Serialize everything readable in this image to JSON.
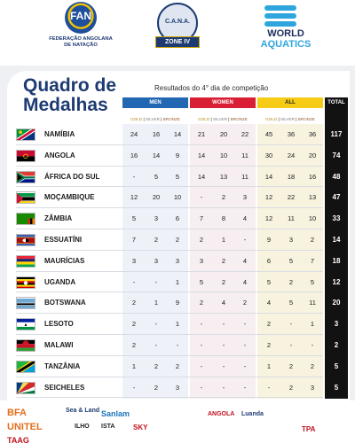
{
  "header": {
    "fan_name_line1": "FEDERAÇÃO ANGOLANA",
    "fan_name_line2": "DE NATAÇÃO",
    "fan_emblem_text": "FAN",
    "cana_text": "C.A.N.A.",
    "cana_zone": "ZONE IV",
    "wa_line1": "WORLD",
    "wa_line2": "AQUATICS",
    "wave_color": "#2ea6dd"
  },
  "table": {
    "title_line1": "Quadro de",
    "title_line2": "Medalhas",
    "subtitle": "Resultados do 4° dia de competição",
    "groups": {
      "men": "MEN",
      "women": "WOMEN",
      "all": "ALL",
      "total": "TOTAL"
    },
    "sub_labels": {
      "gold": "GOLD",
      "silver": "SILVER",
      "bronze": "BRONZE",
      "sep": " | "
    },
    "colors": {
      "men": "#2167b1",
      "women": "#d91f33",
      "all": "#f6cc16",
      "total": "#111111",
      "title": "#1d3b72"
    },
    "rows": [
      {
        "country": "NAMÍBIA",
        "flag": "namibia",
        "men": [
          "24",
          "16",
          "14"
        ],
        "women": [
          "21",
          "20",
          "22"
        ],
        "all": [
          "45",
          "36",
          "36"
        ],
        "total": "117"
      },
      {
        "country": "ANGOLA",
        "flag": "angola",
        "men": [
          "16",
          "14",
          "9"
        ],
        "women": [
          "14",
          "10",
          "11"
        ],
        "all": [
          "30",
          "24",
          "20"
        ],
        "total": "74"
      },
      {
        "country": "ÁFRICA DO SUL",
        "flag": "south-africa",
        "men": [
          "-",
          "5",
          "5"
        ],
        "women": [
          "14",
          "13",
          "11"
        ],
        "all": [
          "14",
          "18",
          "16"
        ],
        "total": "48"
      },
      {
        "country": "MOÇAMBIQUE",
        "flag": "mozambique",
        "men": [
          "12",
          "20",
          "10"
        ],
        "women": [
          "-",
          "2",
          "3"
        ],
        "all": [
          "12",
          "22",
          "13"
        ],
        "total": "47"
      },
      {
        "country": "ZÂMBIA",
        "flag": "zambia",
        "men": [
          "5",
          "3",
          "6"
        ],
        "women": [
          "7",
          "8",
          "4"
        ],
        "all": [
          "12",
          "11",
          "10"
        ],
        "total": "33"
      },
      {
        "country": "ESSUATÍNI",
        "flag": "eswatini",
        "men": [
          "7",
          "2",
          "2"
        ],
        "women": [
          "2",
          "1",
          "-"
        ],
        "all": [
          "9",
          "3",
          "2"
        ],
        "total": "14"
      },
      {
        "country": "MAURÍCIAS",
        "flag": "mauritius",
        "men": [
          "3",
          "3",
          "3"
        ],
        "women": [
          "3",
          "2",
          "4"
        ],
        "all": [
          "6",
          "5",
          "7"
        ],
        "total": "18"
      },
      {
        "country": "UGANDA",
        "flag": "uganda",
        "men": [
          "-",
          "-",
          "1"
        ],
        "women": [
          "5",
          "2",
          "4"
        ],
        "all": [
          "5",
          "2",
          "5"
        ],
        "total": "12"
      },
      {
        "country": "BOTSWANA",
        "flag": "botswana",
        "men": [
          "2",
          "1",
          "9"
        ],
        "women": [
          "2",
          "4",
          "2"
        ],
        "all": [
          "4",
          "5",
          "11"
        ],
        "total": "20"
      },
      {
        "country": "LESOTO",
        "flag": "lesotho",
        "men": [
          "2",
          "-",
          "1"
        ],
        "women": [
          "-",
          "-",
          "-"
        ],
        "all": [
          "2",
          "-",
          "1"
        ],
        "total": "3"
      },
      {
        "country": "MALAWI",
        "flag": "malawi",
        "men": [
          "2",
          "-",
          "-"
        ],
        "women": [
          "-",
          "-",
          "-"
        ],
        "all": [
          "2",
          "-",
          "-"
        ],
        "total": "2"
      },
      {
        "country": "TANZÂNIA",
        "flag": "tanzania",
        "men": [
          "1",
          "2",
          "2"
        ],
        "women": [
          "-",
          "-",
          "-"
        ],
        "all": [
          "1",
          "2",
          "2"
        ],
        "total": "5"
      },
      {
        "country": "SEICHELES",
        "flag": "seychelles",
        "men": [
          "-",
          "2",
          "3"
        ],
        "women": [
          "-",
          "-",
          "-"
        ],
        "all": [
          "-",
          "2",
          "3"
        ],
        "total": "5"
      }
    ]
  },
  "sponsors": [
    {
      "name": "BFA",
      "color": "#e2701c"
    },
    {
      "name": "UNITEL",
      "color": "#e2701c"
    },
    {
      "name": "TAAG",
      "color": "#c1121f"
    },
    {
      "name": "Sea & Land",
      "color": "#1d3b72"
    },
    {
      "name": "Sanlam",
      "color": "#1b74bb"
    },
    {
      "name": "ILHO",
      "color": "#222222"
    },
    {
      "name": "ISTA",
      "color": "#222222"
    },
    {
      "name": "SKY",
      "color": "#c1121f"
    },
    {
      "name": "ANGOLA",
      "color": "#c1121f"
    },
    {
      "name": "Luanda",
      "color": "#1d3b72"
    },
    {
      "name": "TPA",
      "color": "#c1121f"
    }
  ]
}
